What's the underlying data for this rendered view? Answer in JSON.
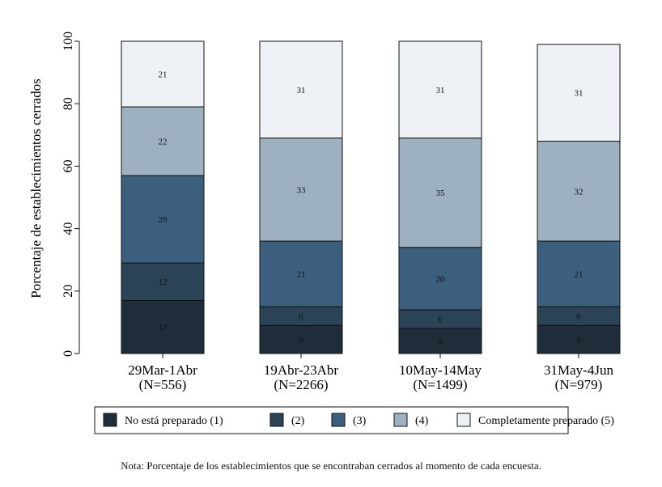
{
  "chart_data": {
    "type": "bar",
    "stacked": true,
    "ylabel": "Porcentaje de establecimientos cerrados",
    "xlabel": "",
    "ylim": [
      0,
      100
    ],
    "yticks": [
      0,
      20,
      40,
      60,
      80,
      100
    ],
    "grid": false,
    "legend_position": "bottom",
    "categories": [
      {
        "label": "29Mar-1Abr",
        "n": "(N=556)"
      },
      {
        "label": "19Abr-23Abr",
        "n": "(N=2266)"
      },
      {
        "label": "10May-14May",
        "n": "(N=1499)"
      },
      {
        "label": "31May-4Jun",
        "n": "(N=979)"
      }
    ],
    "series": [
      {
        "name": "No está preparado (1)",
        "color": "#1f2d3a",
        "values": [
          17,
          9,
          8,
          9
        ]
      },
      {
        "name": "(2)",
        "color": "#2b4356",
        "values": [
          12,
          6,
          6,
          6
        ]
      },
      {
        "name": "(3)",
        "color": "#3b5f7c",
        "values": [
          28,
          21,
          20,
          21
        ]
      },
      {
        "name": "(4)",
        "color": "#9eb1c0",
        "values": [
          22,
          33,
          35,
          32
        ]
      },
      {
        "name": "Completamente preparado (5)",
        "color": "#eef1f5",
        "values": [
          21,
          31,
          31,
          31
        ]
      }
    ],
    "note": "Nota: Porcentaje de los establecimientos que se encontraban cerrados al momento de cada encuesta."
  }
}
